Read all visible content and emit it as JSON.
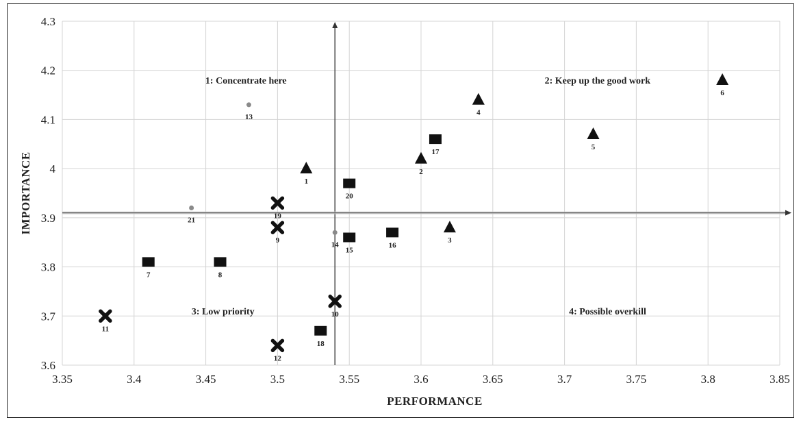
{
  "chart_data": {
    "type": "scatter",
    "xlabel": "PERFORMANCE",
    "ylabel": "IMPORTANCE",
    "xlim": [
      3.35,
      3.85
    ],
    "ylim": [
      3.6,
      4.3
    ],
    "x_ticks": [
      "3.35",
      "3.4",
      "3.45",
      "3.5",
      "3.55",
      "3.6",
      "3.65",
      "3.7",
      "3.75",
      "3.8",
      "3.85"
    ],
    "y_ticks": [
      "3.6",
      "3.7",
      "3.8",
      "3.9",
      "4",
      "4.1",
      "4.2",
      "4.3"
    ],
    "grid": true,
    "divider_x": 3.54,
    "divider_y": 3.91,
    "quadrants": [
      {
        "label": "1: Concentrate here",
        "x": 3.478,
        "y": 4.18
      },
      {
        "label": "2: Keep up the good work",
        "x": 3.723,
        "y": 4.18
      },
      {
        "label": "3: Low priority",
        "x": 3.462,
        "y": 3.71
      },
      {
        "label": "4: Possible overkill",
        "x": 3.73,
        "y": 3.71
      }
    ],
    "points": [
      {
        "id": "1",
        "x": 3.52,
        "y": 4.0,
        "marker": "triangle"
      },
      {
        "id": "2",
        "x": 3.6,
        "y": 4.02,
        "marker": "triangle"
      },
      {
        "id": "3",
        "x": 3.62,
        "y": 3.88,
        "marker": "triangle"
      },
      {
        "id": "4",
        "x": 3.64,
        "y": 4.14,
        "marker": "triangle"
      },
      {
        "id": "5",
        "x": 3.72,
        "y": 4.07,
        "marker": "triangle"
      },
      {
        "id": "6",
        "x": 3.81,
        "y": 4.18,
        "marker": "triangle"
      },
      {
        "id": "7",
        "x": 3.41,
        "y": 3.81,
        "marker": "square"
      },
      {
        "id": "8",
        "x": 3.46,
        "y": 3.81,
        "marker": "square"
      },
      {
        "id": "9",
        "x": 3.5,
        "y": 3.88,
        "marker": "cross"
      },
      {
        "id": "10",
        "x": 3.54,
        "y": 3.73,
        "marker": "cross"
      },
      {
        "id": "11",
        "x": 3.38,
        "y": 3.7,
        "marker": "cross"
      },
      {
        "id": "12",
        "x": 3.5,
        "y": 3.64,
        "marker": "cross"
      },
      {
        "id": "13",
        "x": 3.48,
        "y": 4.13,
        "marker": "dot"
      },
      {
        "id": "14",
        "x": 3.54,
        "y": 3.87,
        "marker": "dot"
      },
      {
        "id": "15",
        "x": 3.55,
        "y": 3.86,
        "marker": "square"
      },
      {
        "id": "16",
        "x": 3.58,
        "y": 3.87,
        "marker": "square"
      },
      {
        "id": "17",
        "x": 3.61,
        "y": 4.06,
        "marker": "square"
      },
      {
        "id": "18",
        "x": 3.53,
        "y": 3.67,
        "marker": "square"
      },
      {
        "id": "19",
        "x": 3.5,
        "y": 3.93,
        "marker": "cross"
      },
      {
        "id": "20",
        "x": 3.55,
        "y": 3.97,
        "marker": "square"
      },
      {
        "id": "21",
        "x": 3.44,
        "y": 3.92,
        "marker": "dot"
      }
    ]
  }
}
